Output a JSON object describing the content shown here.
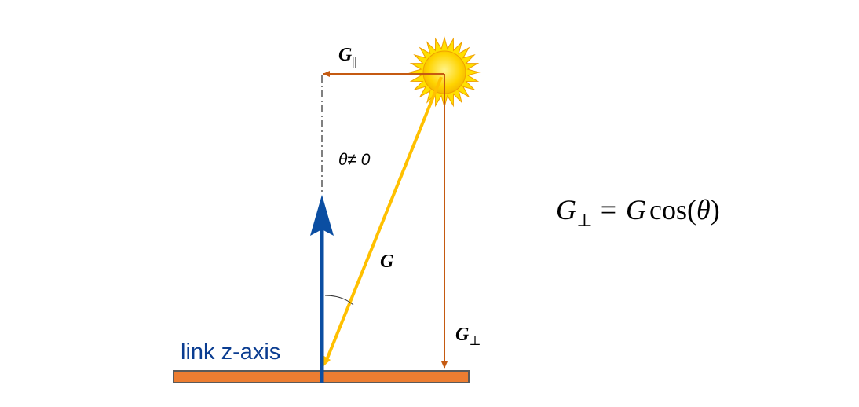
{
  "labels": {
    "g_parallel": "G",
    "g_parallel_sub": "||",
    "g_perp": "G",
    "g_perp_sub": "⊥",
    "g": "G",
    "theta": "θ≠ 0",
    "link_axis": "link z-axis"
  },
  "equation": {
    "lhs": "G",
    "lhs_sub": "⊥",
    "rhs_eq": "=",
    "rhs_g": "G",
    "rhs_cos": "cos(",
    "rhs_theta": "θ",
    "rhs_close": ")"
  },
  "colors": {
    "link_bar_fill": "#ed7d31",
    "link_bar_stroke": "#5a5a5a",
    "z_axis": "#0b4ea2",
    "gravity_vector": "#ffc000",
    "components": "#c55a11",
    "sun_core": "#ffd400",
    "sun_rays": "#ffe000",
    "sun_outline": "#f0a000",
    "text": "#000000",
    "link_label": "#0b3d91"
  },
  "icons": {
    "sun": "sun-icon"
  }
}
